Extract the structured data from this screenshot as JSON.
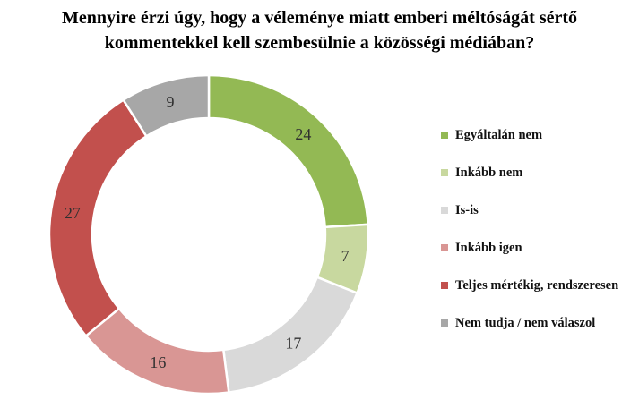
{
  "header": {
    "title_lines": [
      "Mennyire érzi úgy, hogy a véleménye miatt emberi méltóságát sértő",
      "kommentekkel kell szembesülnie a közösségi médiában?"
    ]
  },
  "chart_data": {
    "type": "pie",
    "subtype": "donut",
    "title": "Mennyire érzi úgy, hogy a véleménye miatt emberi méltóságát sértő kommentekkel kell szembesülnie a közösségi médiában?",
    "categories": [
      "Egyáltalán nem",
      "Inkább nem",
      "Is-is",
      "Inkább igen",
      "Teljes mértékig, rendszeresen",
      "Nem tudja / nem válaszol"
    ],
    "values": [
      24,
      7,
      17,
      16,
      27,
      9
    ],
    "colors": [
      "#93b954",
      "#c8d89f",
      "#d9d9d9",
      "#d99694",
      "#c2504d",
      "#a7a7a7"
    ],
    "data_label_color": "#303030",
    "segment_stroke_color": "#ffffff",
    "start_angle_deg": 0,
    "direction": "clockwise",
    "inner_radius_ratio": 0.73,
    "legend_position": "right",
    "labels_shown": "values"
  },
  "legend": {
    "items": [
      {
        "label": "Egyáltalán nem",
        "color": "#93b954"
      },
      {
        "label": "Inkább nem",
        "color": "#c8d89f"
      },
      {
        "label": "Is-is",
        "color": "#d9d9d9"
      },
      {
        "label": "Inkább igen",
        "color": "#d99694"
      },
      {
        "label": "Teljes mértékig, rendszeresen",
        "color": "#c2504d"
      },
      {
        "label": "Nem tudja / nem válaszol",
        "color": "#a7a7a7"
      }
    ]
  }
}
